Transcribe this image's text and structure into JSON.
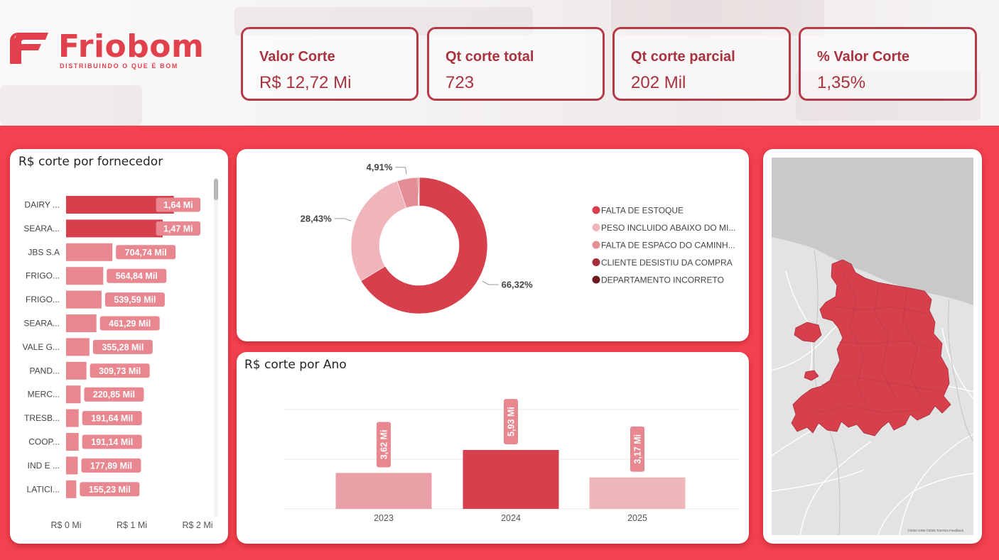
{
  "brand": {
    "name": "Friobom",
    "tagline": "DISTRIBUINDO O QUE É BOM",
    "colors": {
      "primary": "#e0414d",
      "dark": "#a8323e",
      "background": "#f2414f"
    }
  },
  "kpis": [
    {
      "label": "Valor Corte",
      "value": "R$ 12,72 Mi"
    },
    {
      "label": "Qt corte total",
      "value": "723"
    },
    {
      "label": "Qt corte parcial",
      "value": "202 Mil"
    },
    {
      "label": "% Valor Corte",
      "value": "1,35%"
    }
  ],
  "supplier_chart": {
    "title": "R$ corte por fornecedor"
  },
  "year_chart": {
    "title": "R$ corte por Ano"
  },
  "map": {
    "attribution": "©2025 OSM ©2025 TomTom Feedback"
  },
  "chart_data": [
    {
      "type": "bar",
      "orientation": "horizontal",
      "title": "R$ corte por fornecedor",
      "categories": [
        "DAIRY ...",
        "SEARA...",
        "JBS S.A",
        "FRIGO...",
        "FRIGO...",
        "SEARA...",
        "VALE G...",
        "PAND...",
        "MERC...",
        "TRESB...",
        "COOP...",
        "IND E ...",
        "LATICI..."
      ],
      "values": [
        1.64,
        1.47,
        0.70474,
        0.56484,
        0.53959,
        0.46129,
        0.35528,
        0.30973,
        0.22085,
        0.19164,
        0.19114,
        0.17789,
        0.15523
      ],
      "labels": [
        "1,64 Mi",
        "1,47 Mi",
        "704,74 Mil",
        "564,84 Mil",
        "539,59 Mil",
        "461,29 Mil",
        "355,28 Mil",
        "309,73 Mil",
        "220,85 Mil",
        "191,64 Mil",
        "191,14 Mil",
        "177,89 Mil",
        "155,23 Mil"
      ],
      "x_ticks": [
        "R$ 0 Mi",
        "R$ 1 Mi",
        "R$ 2 Mi"
      ],
      "xlim": [
        0,
        2
      ],
      "colors": {
        "highlight": "#d6404d",
        "normal": "#e8878f"
      }
    },
    {
      "type": "pie",
      "variant": "donut",
      "slices": [
        {
          "name": "FALTA DE ESTOQUE",
          "value": 66.32,
          "label": "66,32%",
          "color": "#d6404d"
        },
        {
          "name": "PESO INCLUIDO ABAIXO DO MI...",
          "value": 28.43,
          "label": "28,43%",
          "color": "#efb5ba"
        },
        {
          "name": "FALTA DE ESPACO DO CAMINH...",
          "value": 4.91,
          "label": "4,91%",
          "color": "#e58d95"
        },
        {
          "name": "CLIENTE DESISTIU DA COMPRA",
          "value": 0.2,
          "label": "",
          "color": "#a82d3a"
        },
        {
          "name": "DEPARTAMENTO INCORRETO",
          "value": 0.14,
          "label": "",
          "color": "#6e1a22"
        }
      ],
      "legend_position": "right"
    },
    {
      "type": "bar",
      "title": "R$ corte por Ano",
      "categories": [
        "2023",
        "2024",
        "2025"
      ],
      "values": [
        3.62,
        5.93,
        3.17
      ],
      "labels": [
        "3,62 Mi",
        "5,93 Mi",
        "3,17 Mi"
      ],
      "colors": [
        "#e9a1a7",
        "#d6404d",
        "#f0b7bb"
      ],
      "ylim": [
        0,
        10
      ],
      "grid": true
    }
  ]
}
